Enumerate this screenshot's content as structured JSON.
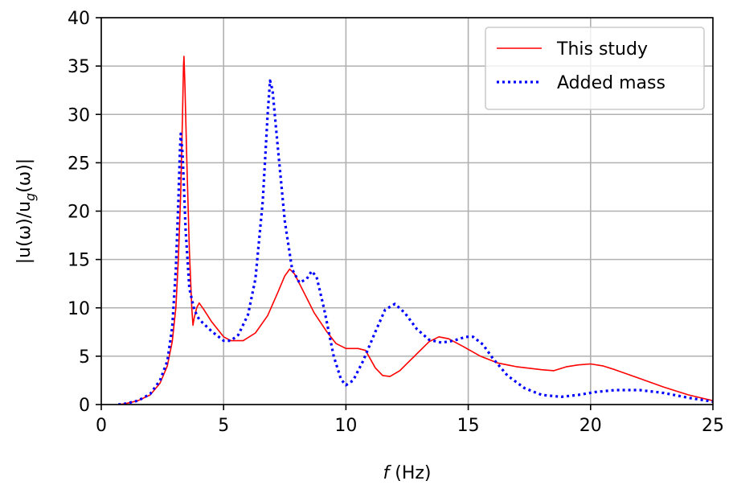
{
  "chart_data": {
    "type": "line",
    "xlabel_italic": "f",
    "xlabel_rest": " (Hz)",
    "ylabel": "|u(ω)/u_g(ω)|",
    "xlim": [
      0,
      25
    ],
    "ylim": [
      0,
      40
    ],
    "xticks": [
      0,
      5,
      10,
      15,
      20,
      25
    ],
    "yticks": [
      0,
      5,
      10,
      15,
      20,
      25,
      30,
      35,
      40
    ],
    "grid": true,
    "legend_position": "top-right",
    "series": [
      {
        "name": "This study",
        "color": "#ff0000",
        "style": "solid",
        "points": [
          [
            0.7,
            0
          ],
          [
            1.0,
            0.1
          ],
          [
            1.5,
            0.4
          ],
          [
            2.0,
            1.0
          ],
          [
            2.4,
            2.2
          ],
          [
            2.7,
            4.0
          ],
          [
            2.9,
            6.5
          ],
          [
            3.05,
            10.0
          ],
          [
            3.15,
            15.0
          ],
          [
            3.25,
            22.0
          ],
          [
            3.32,
            30.0
          ],
          [
            3.36,
            35.0
          ],
          [
            3.38,
            36.0
          ],
          [
            3.42,
            33.0
          ],
          [
            3.5,
            25.0
          ],
          [
            3.6,
            16.0
          ],
          [
            3.7,
            10.0
          ],
          [
            3.75,
            8.2
          ],
          [
            3.8,
            9.0
          ],
          [
            3.9,
            10.0
          ],
          [
            4.0,
            10.5
          ],
          [
            4.2,
            9.8
          ],
          [
            4.5,
            8.6
          ],
          [
            5.0,
            7.0
          ],
          [
            5.3,
            6.6
          ],
          [
            5.8,
            6.6
          ],
          [
            6.3,
            7.4
          ],
          [
            6.8,
            9.2
          ],
          [
            7.2,
            11.5
          ],
          [
            7.5,
            13.3
          ],
          [
            7.7,
            14.0
          ],
          [
            7.9,
            13.5
          ],
          [
            8.3,
            11.5
          ],
          [
            8.7,
            9.5
          ],
          [
            9.2,
            7.6
          ],
          [
            9.6,
            6.3
          ],
          [
            10.0,
            5.8
          ],
          [
            10.5,
            5.8
          ],
          [
            10.8,
            5.6
          ],
          [
            11.2,
            3.8
          ],
          [
            11.5,
            3.0
          ],
          [
            11.8,
            2.9
          ],
          [
            12.2,
            3.5
          ],
          [
            12.8,
            5.0
          ],
          [
            13.4,
            6.5
          ],
          [
            13.8,
            7.0
          ],
          [
            14.2,
            6.8
          ],
          [
            14.8,
            6.0
          ],
          [
            15.5,
            5.0
          ],
          [
            16.2,
            4.3
          ],
          [
            17.0,
            3.9
          ],
          [
            18.0,
            3.6
          ],
          [
            18.5,
            3.5
          ],
          [
            19.0,
            3.9
          ],
          [
            19.5,
            4.1
          ],
          [
            20.0,
            4.2
          ],
          [
            20.5,
            4.0
          ],
          [
            21.0,
            3.6
          ],
          [
            22.0,
            2.7
          ],
          [
            23.0,
            1.8
          ],
          [
            24.0,
            1.0
          ],
          [
            25.0,
            0.4
          ]
        ]
      },
      {
        "name": "Added mass",
        "color": "#0000ff",
        "style": "dotted",
        "points": [
          [
            0.7,
            0
          ],
          [
            1.0,
            0.1
          ],
          [
            1.5,
            0.4
          ],
          [
            2.0,
            1.1
          ],
          [
            2.4,
            2.5
          ],
          [
            2.7,
            4.5
          ],
          [
            2.9,
            8.0
          ],
          [
            3.05,
            14.0
          ],
          [
            3.15,
            21.0
          ],
          [
            3.22,
            26.5
          ],
          [
            3.25,
            28.0
          ],
          [
            3.32,
            26.0
          ],
          [
            3.45,
            18.0
          ],
          [
            3.6,
            12.0
          ],
          [
            3.8,
            9.8
          ],
          [
            4.0,
            8.8
          ],
          [
            4.5,
            7.6
          ],
          [
            5.0,
            6.6
          ],
          [
            5.3,
            6.6
          ],
          [
            5.6,
            7.2
          ],
          [
            6.0,
            9.3
          ],
          [
            6.3,
            13.0
          ],
          [
            6.6,
            21.0
          ],
          [
            6.8,
            30.0
          ],
          [
            6.9,
            33.5
          ],
          [
            7.0,
            32.5
          ],
          [
            7.2,
            27.0
          ],
          [
            7.5,
            19.0
          ],
          [
            7.8,
            14.0
          ],
          [
            8.1,
            12.6
          ],
          [
            8.4,
            13.0
          ],
          [
            8.6,
            13.8
          ],
          [
            8.8,
            13.2
          ],
          [
            9.1,
            10.0
          ],
          [
            9.5,
            5.0
          ],
          [
            9.8,
            2.6
          ],
          [
            10.0,
            2.0
          ],
          [
            10.3,
            2.5
          ],
          [
            10.7,
            4.5
          ],
          [
            11.2,
            7.5
          ],
          [
            11.6,
            9.8
          ],
          [
            12.0,
            10.4
          ],
          [
            12.4,
            9.5
          ],
          [
            12.9,
            7.8
          ],
          [
            13.4,
            6.7
          ],
          [
            13.9,
            6.4
          ],
          [
            14.4,
            6.6
          ],
          [
            14.9,
            7.0
          ],
          [
            15.2,
            7.0
          ],
          [
            15.6,
            6.2
          ],
          [
            16.0,
            4.8
          ],
          [
            16.6,
            3.0
          ],
          [
            17.3,
            1.7
          ],
          [
            18.0,
            1.0
          ],
          [
            18.8,
            0.8
          ],
          [
            19.5,
            1.0
          ],
          [
            20.2,
            1.3
          ],
          [
            21.0,
            1.5
          ],
          [
            22.0,
            1.5
          ],
          [
            23.0,
            1.2
          ],
          [
            24.0,
            0.7
          ],
          [
            25.0,
            0.3
          ]
        ]
      }
    ]
  }
}
